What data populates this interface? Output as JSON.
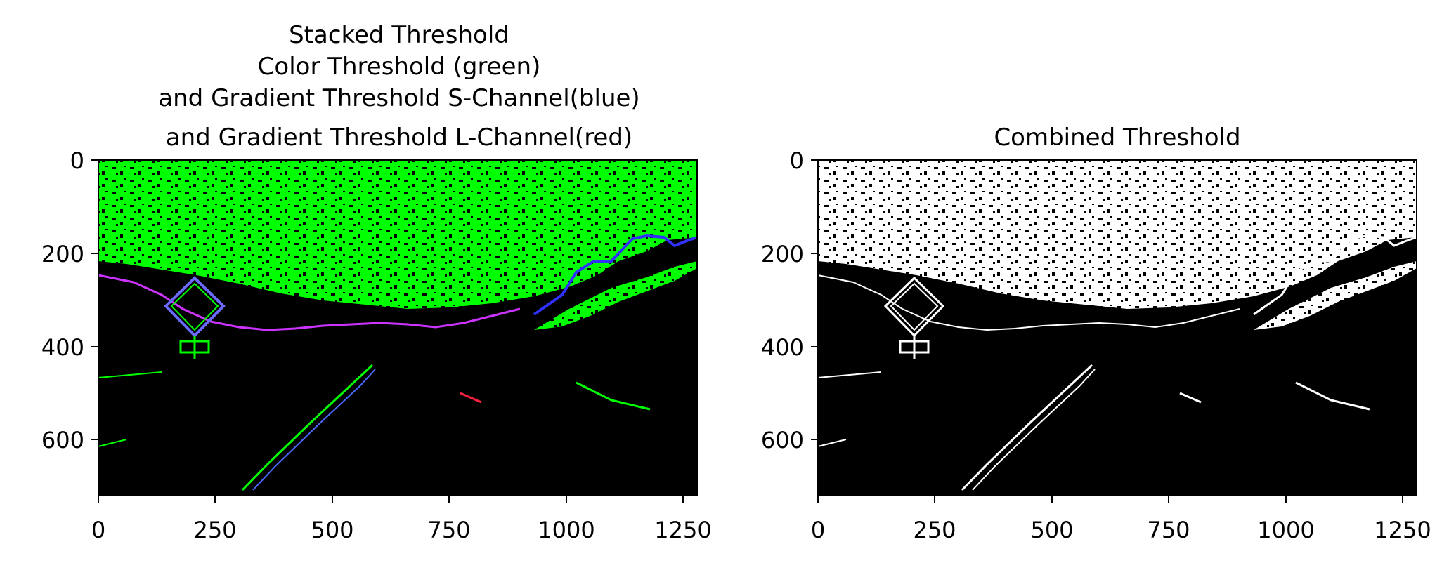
{
  "chart_data": [
    {
      "type": "image",
      "title_lines": [
        "Stacked Threshold",
        "Color Threshold (green)",
        "and Gradient Threshold S-Channel(blue)",
        "and Gradient Threshold L-Channel(red)"
      ],
      "x_ticks": [
        "0",
        "250",
        "500",
        "750",
        "1000",
        "1250"
      ],
      "y_ticks": [
        "0",
        "200",
        "400",
        "600"
      ],
      "xlim": [
        0,
        1280
      ],
      "ylim": [
        720,
        0
      ],
      "colors": {
        "green": "#00ff00",
        "blue": "#0000ff",
        "red": "#ff0000",
        "background": "#000000"
      }
    },
    {
      "type": "image",
      "title_lines": [
        "Combined Threshold"
      ],
      "x_ticks": [
        "0",
        "250",
        "500",
        "750",
        "1000",
        "1250"
      ],
      "y_ticks": [
        "0",
        "200",
        "400",
        "600"
      ],
      "xlim": [
        0,
        1280
      ],
      "ylim": [
        720,
        0
      ],
      "colors": {
        "foreground": "#ffffff",
        "background": "#000000"
      }
    }
  ]
}
